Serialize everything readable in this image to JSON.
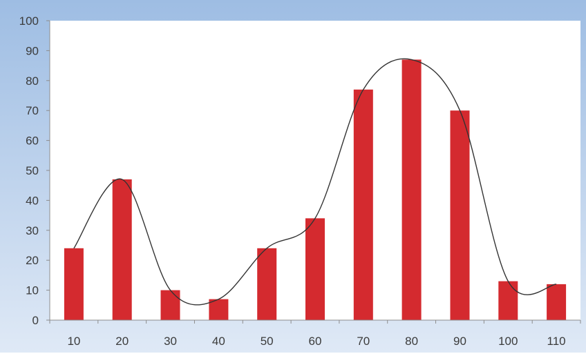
{
  "chart_data": {
    "type": "bar",
    "categories": [
      "10",
      "20",
      "30",
      "40",
      "50",
      "60",
      "70",
      "80",
      "90",
      "100",
      "110"
    ],
    "series": [
      {
        "values": [
          24,
          47,
          10,
          7,
          24,
          34,
          77,
          87,
          70,
          13,
          12
        ]
      }
    ],
    "overlay": "smooth-curve",
    "y_ticks": [
      "0",
      "10",
      "20",
      "30",
      "40",
      "50",
      "60",
      "70",
      "80",
      "90",
      "100"
    ],
    "ylim": [
      0,
      100
    ],
    "xlabel": "",
    "ylabel": "",
    "title": "",
    "grid": false,
    "legend": "none",
    "colors": {
      "bar": "#d42a2f",
      "curve": "#333333",
      "frame_gradient_top": "#9ebde3",
      "frame_gradient_bottom": "#dfe9f6",
      "plot_background": "#ffffff",
      "axis": "#8c8c8c",
      "tick_text": "#3b3b3b"
    }
  }
}
